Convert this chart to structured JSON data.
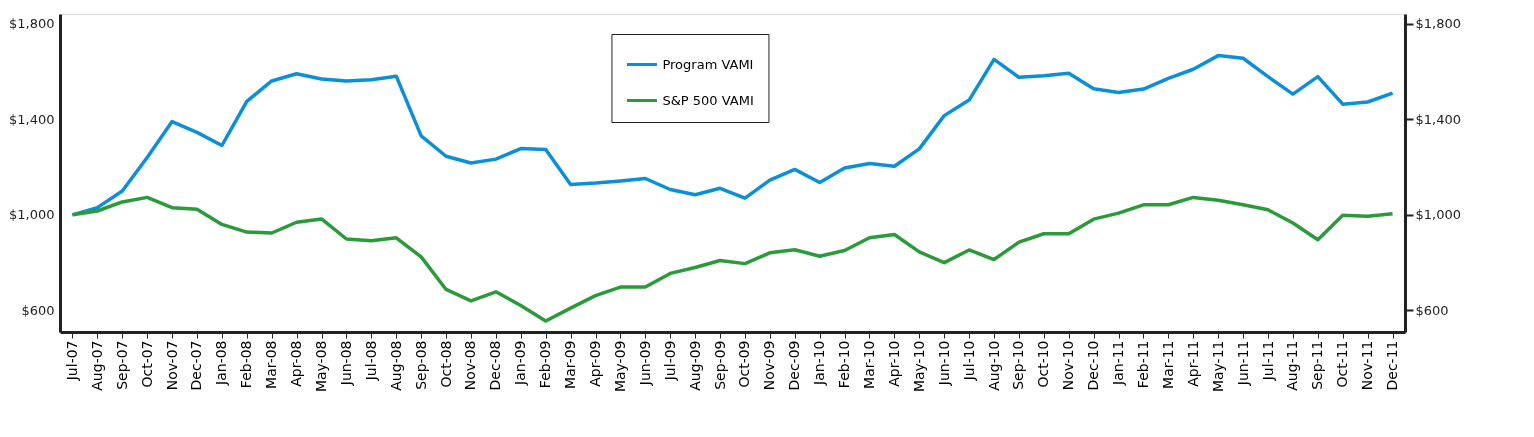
{
  "chart_data": {
    "type": "line",
    "categories": [
      "Jul-07",
      "Aug-07",
      "Sep-07",
      "Oct-07",
      "Nov-07",
      "Dec-07",
      "Jan-08",
      "Feb-08",
      "Mar-08",
      "Apr-08",
      "May-08",
      "Jun-08",
      "Jul-08",
      "Aug-08",
      "Sep-08",
      "Oct-08",
      "Nov-08",
      "Dec-08",
      "Jan-09",
      "Feb-09",
      "Mar-09",
      "Apr-09",
      "May-09",
      "Jun-09",
      "Jul-09",
      "Aug-09",
      "Sep-09",
      "Oct-09",
      "Nov-09",
      "Dec-09",
      "Jan-10",
      "Feb-10",
      "Mar-10",
      "Apr-10",
      "May-10",
      "Jun-10",
      "Jul-10",
      "Aug-10",
      "Sep-10",
      "Oct-10",
      "Nov-10",
      "Dec-10",
      "Jan-11",
      "Feb-11",
      "Mar-11",
      "Apr-11",
      "May-11",
      "Jun-11",
      "Jul-11",
      "Aug-11",
      "Sep-11",
      "Oct-11",
      "Nov-11",
      "Dec-11"
    ],
    "series": [
      {
        "name": "Program VAMI",
        "color": "#0b8fd6",
        "values": [
          1000,
          1030,
          1100,
          1240,
          1390,
          1345,
          1290,
          1475,
          1560,
          1590,
          1568,
          1560,
          1565,
          1580,
          1330,
          1245,
          1217,
          1233,
          1277,
          1273,
          1127,
          1133,
          1142,
          1152,
          1106,
          1084,
          1111,
          1070,
          1145,
          1190,
          1135,
          1196,
          1215,
          1203,
          1276,
          1415,
          1480,
          1650,
          1575,
          1582,
          1592,
          1527,
          1512,
          1526,
          1571,
          1609,
          1666,
          1655,
          1578,
          1505,
          1578,
          1463,
          1472,
          1509
        ]
      },
      {
        "name": "S&P 500 VAMI",
        "color": "#2a9a3a",
        "values": [
          1000,
          1016,
          1054,
          1073,
          1030,
          1023,
          960,
          928,
          924,
          969,
          983,
          899,
          892,
          904,
          824,
          688,
          640,
          678,
          621,
          556,
          610,
          662,
          698,
          698,
          755,
          780,
          809,
          796,
          841,
          854,
          827,
          851,
          904,
          918,
          845,
          800,
          853,
          813,
          886,
          921,
          921,
          982,
          1007,
          1042,
          1042,
          1073,
          1061,
          1042,
          1021,
          966,
          896,
          998,
          994,
          1005
        ]
      }
    ],
    "ylim": [
      510,
      1840
    ],
    "yticks": [
      {
        "value": 600,
        "label": "$600"
      },
      {
        "value": 1000,
        "label": "$1,000"
      },
      {
        "value": 1400,
        "label": "$1,400"
      },
      {
        "value": 1800,
        "label": "$1,800"
      }
    ],
    "y2lim": [
      510,
      1840
    ],
    "y2ticks": [
      {
        "value": 600,
        "label": "$600"
      },
      {
        "value": 1000,
        "label": "$1,000"
      },
      {
        "value": 1400,
        "label": "$1,400"
      },
      {
        "value": 1800,
        "label": "$1,800"
      }
    ],
    "grid": false,
    "legend": "top",
    "line_style": "solid"
  }
}
